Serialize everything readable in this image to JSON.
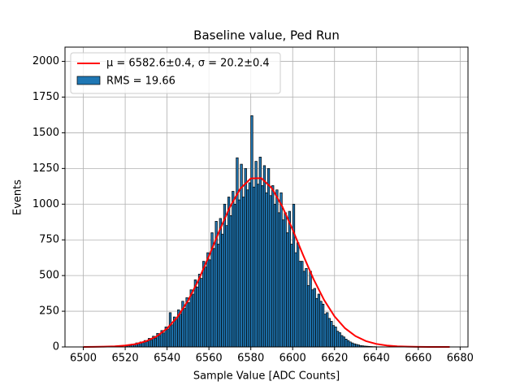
{
  "chart_data": {
    "type": "histogram",
    "title": "Baseline value, Ped Run",
    "xlabel": "Sample Value [ADC Counts]",
    "ylabel": "Events",
    "name": "RMS = 19.66",
    "color": "#1f77b4",
    "edgecolor": "#000000",
    "bins": [
      6520,
      6521,
      6522,
      6523,
      6524,
      6525,
      6526,
      6527,
      6528,
      6529,
      6530,
      6531,
      6532,
      6533,
      6534,
      6535,
      6536,
      6537,
      6538,
      6539,
      6540,
      6541,
      6542,
      6543,
      6544,
      6545,
      6546,
      6547,
      6548,
      6549,
      6550,
      6551,
      6552,
      6553,
      6554,
      6555,
      6556,
      6557,
      6558,
      6559,
      6560,
      6561,
      6562,
      6563,
      6564,
      6565,
      6566,
      6567,
      6568,
      6569,
      6570,
      6571,
      6572,
      6573,
      6574,
      6575,
      6576,
      6577,
      6578,
      6579,
      6580,
      6581,
      6582,
      6583,
      6584,
      6585,
      6586,
      6587,
      6588,
      6589,
      6590,
      6591,
      6592,
      6593,
      6594,
      6595,
      6596,
      6597,
      6598,
      6599,
      6600,
      6601,
      6602,
      6603,
      6604,
      6605,
      6606,
      6607,
      6608,
      6609,
      6610,
      6611,
      6612,
      6613,
      6614,
      6615,
      6616,
      6617,
      6618,
      6619,
      6620,
      6621,
      6622,
      6623,
      6624,
      6625,
      6626,
      6627,
      6628,
      6629,
      6630,
      6631,
      6632,
      6633,
      6634,
      6635,
      6636,
      6637,
      6638,
      6639,
      6640,
      6641,
      6642,
      6643,
      6644,
      6645
    ],
    "values": [
      8,
      15,
      10,
      20,
      17,
      28,
      22,
      35,
      30,
      45,
      38,
      60,
      48,
      75,
      62,
      95,
      80,
      115,
      98,
      140,
      125,
      240,
      155,
      210,
      190,
      260,
      230,
      320,
      270,
      345,
      310,
      400,
      370,
      470,
      420,
      510,
      480,
      600,
      560,
      660,
      610,
      800,
      690,
      880,
      720,
      900,
      790,
      1000,
      850,
      1050,
      920,
      1090,
      1000,
      1325,
      1030,
      1280,
      1050,
      1250,
      1100,
      1150,
      1620,
      1120,
      1300,
      1140,
      1330,
      1130,
      1270,
      1080,
      1250,
      1060,
      1130,
      1000,
      1100,
      940,
      1080,
      890,
      940,
      800,
      950,
      720,
      1000,
      660,
      730,
      600,
      600,
      530,
      550,
      430,
      530,
      400,
      410,
      340,
      370,
      320,
      300,
      230,
      240,
      200,
      180,
      150,
      140,
      110,
      100,
      80,
      70,
      55,
      45,
      35,
      28,
      22,
      18,
      14,
      10,
      8,
      6,
      5,
      4,
      3,
      2,
      2,
      1,
      1,
      1,
      0,
      0
    ],
    "fit": {
      "name": "μ = 6582.6±0.4, σ = 20.2±0.4",
      "color": "#ff0000",
      "x": [
        6500,
        6505,
        6510,
        6515,
        6520,
        6525,
        6530,
        6535,
        6540,
        6545,
        6550,
        6555,
        6560,
        6565,
        6570,
        6575,
        6580,
        6585,
        6590,
        6595,
        6600,
        6605,
        6610,
        6615,
        6620,
        6625,
        6630,
        6635,
        6640,
        6645,
        6650,
        6655,
        6660,
        6665,
        6670,
        6675
      ],
      "values": [
        0.28,
        0.74,
        1.9,
        4.4,
        9.8,
        20,
        40,
        74,
        129,
        210,
        324,
        468,
        636,
        814,
        979,
        1109,
        1180,
        1182,
        1113,
        985,
        821,
        643,
        474,
        329,
        214,
        131,
        76,
        41,
        21,
        10,
        4.5,
        1.9,
        0.77,
        0.29,
        0.1,
        0.03
      ]
    },
    "xlim": [
      6491.25,
      6683.75
    ],
    "ylim": [
      0,
      2100
    ],
    "xticks": [
      6500,
      6520,
      6540,
      6560,
      6580,
      6600,
      6620,
      6640,
      6660,
      6680
    ],
    "yticks": [
      0,
      250,
      500,
      750,
      1000,
      1250,
      1500,
      1750,
      2000
    ],
    "grid": true,
    "legend": "upper left"
  }
}
